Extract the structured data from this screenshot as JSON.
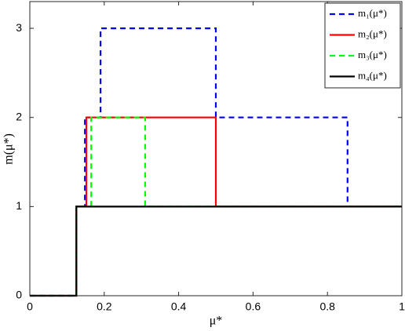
{
  "chart_data": {
    "type": "line",
    "xlabel": "μ*",
    "ylabel": "m(μ*)",
    "xlim": [
      0,
      1
    ],
    "ylim": [
      0,
      3.3
    ],
    "xticks": [
      0,
      0.2,
      0.4,
      0.6,
      0.8,
      1
    ],
    "yticks": [
      0,
      1,
      2,
      3
    ],
    "grid": false,
    "legend": "upper right",
    "series": [
      {
        "name": "m₁(μ*)",
        "color": "#0000ff",
        "style": "dashed",
        "x": [
          0,
          0.125,
          0.125,
          0.148,
          0.148,
          0.19,
          0.19,
          0.5,
          0.5,
          0.854,
          0.854,
          1
        ],
        "values": [
          0,
          0,
          1,
          1,
          2,
          2,
          3,
          3,
          2,
          2,
          1,
          1
        ]
      },
      {
        "name": "m₂(μ*)",
        "color": "#ff0000",
        "style": "solid",
        "x": [
          0,
          0.125,
          0.125,
          0.152,
          0.152,
          0.5,
          0.5,
          1
        ],
        "values": [
          0,
          0,
          1,
          1,
          2,
          2,
          1,
          1
        ]
      },
      {
        "name": "m₃(μ*)",
        "color": "#00ff00",
        "style": "dashed",
        "x": [
          0,
          0.125,
          0.125,
          0.165,
          0.165,
          0.31,
          0.31,
          1
        ],
        "values": [
          0,
          0,
          1,
          1,
          2,
          2,
          1,
          1
        ]
      },
      {
        "name": "m₄(μ*)",
        "color": "#000000",
        "style": "solid",
        "x": [
          0,
          0.125,
          0.125,
          1
        ],
        "values": [
          0,
          0,
          1,
          1
        ]
      }
    ]
  }
}
